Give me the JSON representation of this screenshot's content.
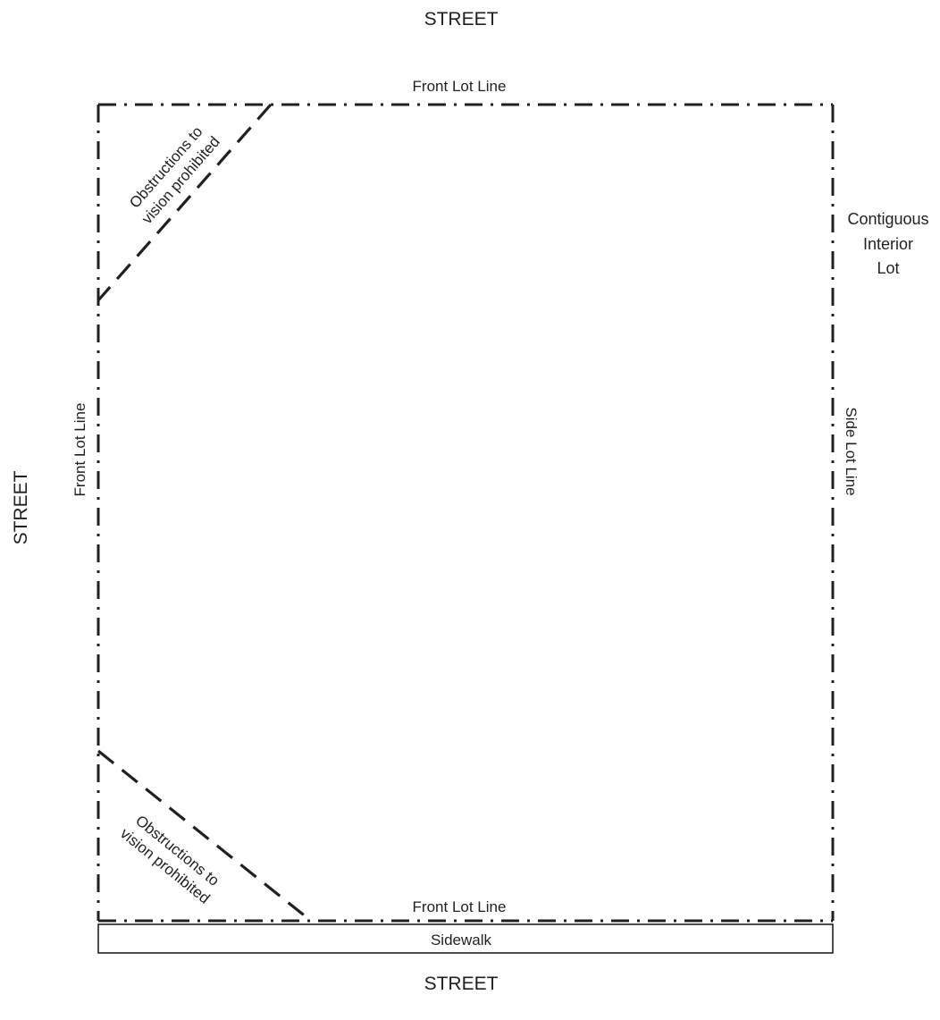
{
  "streets": {
    "top": "STREET",
    "left": "STREET",
    "bottom": "STREET"
  },
  "lot_lines": {
    "top_front": "Front Lot Line",
    "left_front": "Front Lot Line",
    "bottom_front": "Front Lot Line",
    "right_side": "Side Lot Line"
  },
  "contiguous_lot": {
    "line1": "Contiguous",
    "line2": "Interior",
    "line3": "Lot"
  },
  "obstructions_top": {
    "line1": "Obstructions to",
    "line2": "vision prohibited"
  },
  "obstructions_bottom": {
    "line1": "Obstructions to",
    "line2": "vision prohibited"
  },
  "sidewalk": "Sidewalk"
}
